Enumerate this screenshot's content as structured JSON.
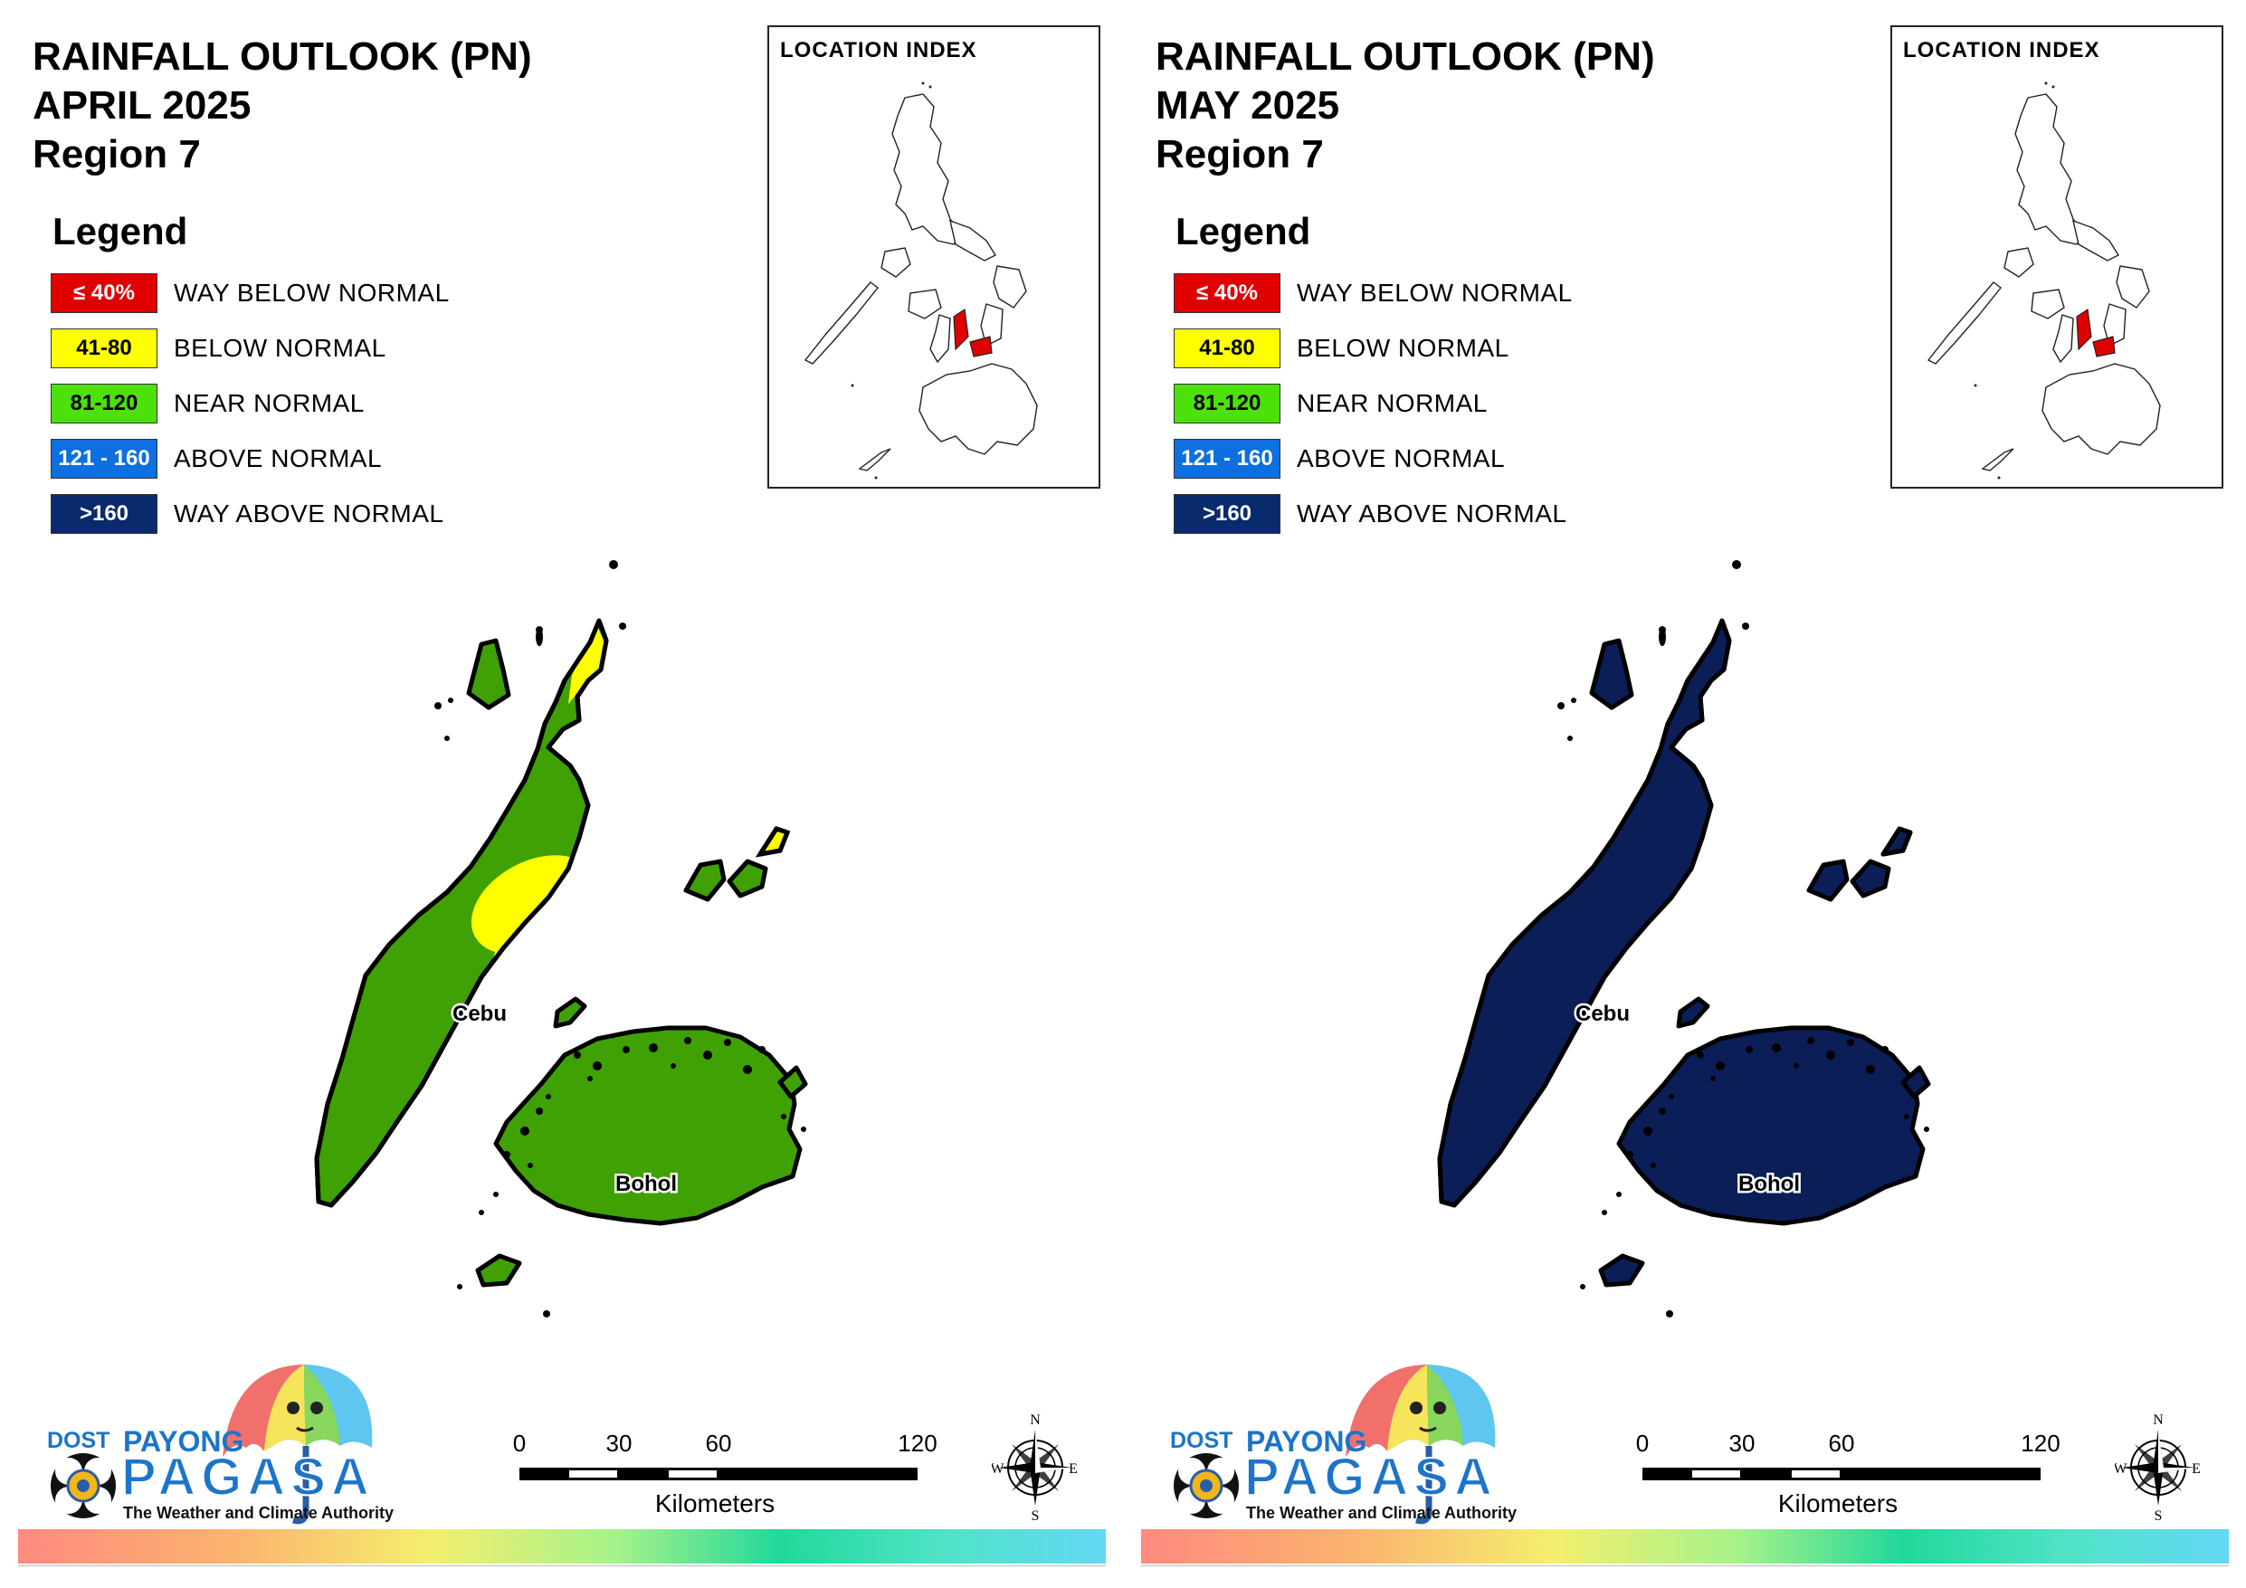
{
  "panels": [
    {
      "id": "april",
      "title_line1": "RAINFALL OUTLOOK (PN)",
      "title_line2": "APRIL 2025",
      "title_line3": "Region 7",
      "fill_main": "#3fa104",
      "inner_yellow": true
    },
    {
      "id": "may",
      "title_line1": "RAINFALL OUTLOOK (PN)",
      "title_line2": "MAY 2025",
      "title_line3": "Region 7",
      "fill_main": "#0b1e57",
      "inner_yellow": false
    }
  ],
  "legend": {
    "heading": "Legend",
    "items": [
      {
        "range": "≤ 40%",
        "label": "WAY BELOW NORMAL",
        "color": "#e00000",
        "text_color": "#ffffff"
      },
      {
        "range": "41-80",
        "label": "BELOW NORMAL",
        "color": "#ffff00",
        "text_color": "#000000"
      },
      {
        "range": "81-120",
        "label": "NEAR NORMAL",
        "color": "#4ce10a",
        "text_color": "#000000"
      },
      {
        "range": "121 - 160",
        "label": "ABOVE NORMAL",
        "color": "#0d6fe0",
        "text_color": "#ffffff"
      },
      {
        "range": ">160",
        "label": "WAY ABOVE NORMAL",
        "color": "#0a2a6e",
        "text_color": "#ffffff"
      }
    ]
  },
  "inset": {
    "title": "LOCATION INDEX",
    "highlight_color": "#e00000"
  },
  "map_labels": {
    "cebu": "Cebu",
    "bohol": "Bohol"
  },
  "logo": {
    "dost": "DOST",
    "payong": "PAYONG",
    "pagasa": "PAGASA",
    "tagline": "The Weather and Climate Authority"
  },
  "scale": {
    "ticks": [
      "0",
      "30",
      "60",
      "120"
    ],
    "unit": "Kilometers"
  },
  "compass": {
    "n": "N",
    "s": "S",
    "e": "E",
    "w": "W"
  },
  "yellow": "#ffff00"
}
